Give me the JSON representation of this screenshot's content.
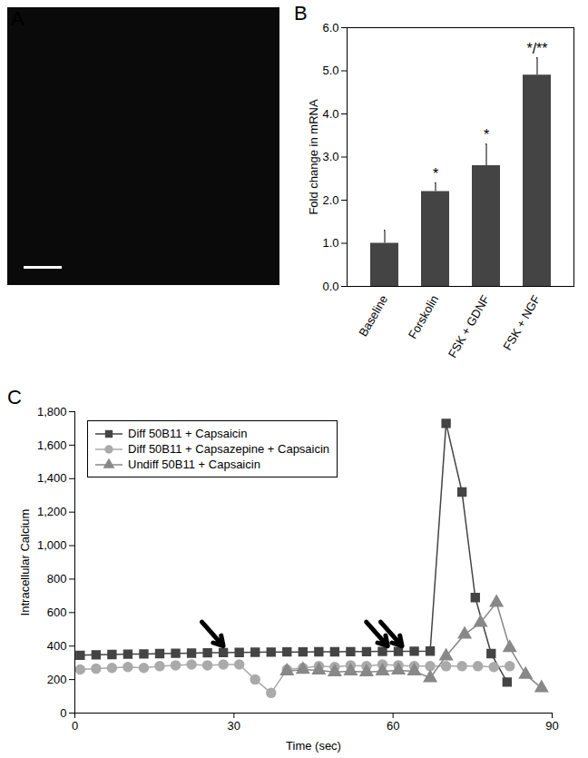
{
  "chart_data": [
    {
      "type": "image",
      "panel": "A"
    },
    {
      "type": "bar",
      "panel": "B",
      "categories": [
        "Baseline",
        "Forskolin",
        "FSK + GDNF",
        "FSK + NGF"
      ],
      "values": [
        1,
        2.2,
        2.8,
        4.9
      ],
      "errors": [
        0.3,
        0.2,
        0.5,
        0.4
      ],
      "annotations": [
        null,
        "*",
        "*",
        "*/**"
      ],
      "color": "#444444",
      "y_label": "Fold change in mRNA",
      "ylim": [
        0,
        6
      ],
      "yticks": [
        0,
        1,
        2,
        3,
        4,
        5,
        6
      ]
    },
    {
      "type": "line",
      "panel": "C",
      "x_label": "Time (sec)",
      "y_label": "Intracellular Calcium",
      "xlim": [
        0,
        90
      ],
      "xticks": [
        0,
        30,
        60,
        90
      ],
      "ylim": [
        0,
        1800
      ],
      "yticks": [
        0,
        200,
        400,
        600,
        800,
        1000,
        1200,
        1400,
        1600,
        1800
      ],
      "legend": "top-left",
      "arrows": [
        {
          "x": 28,
          "y": 400,
          "count": 1
        },
        {
          "x": 59,
          "y": 400,
          "count": 2
        }
      ],
      "series": [
        {
          "name": "Diff 50B11 + Capsaicin",
          "color": "#444444",
          "marker": "square",
          "x": [
            1,
            4,
            7,
            10,
            13,
            16,
            19,
            22,
            25,
            28,
            31,
            34,
            37,
            40,
            43,
            46,
            49,
            52,
            55,
            58,
            61,
            64,
            67,
            70,
            73,
            75.5,
            78.5,
            81.5
          ],
          "values": [
            345,
            348,
            350,
            352,
            353,
            355,
            357,
            358,
            360,
            361,
            362,
            363,
            364,
            365,
            365,
            366,
            366,
            367,
            367,
            368,
            368,
            369,
            370,
            1730,
            1320,
            690,
            355,
            185
          ]
        },
        {
          "name": "Diff 50B11 + Capsazepine + Capsaicin",
          "color": "#aaaaaa",
          "marker": "circle",
          "x": [
            1,
            4,
            7,
            10,
            13,
            16,
            19,
            22,
            25,
            28,
            31,
            34,
            37,
            40,
            43,
            46,
            49,
            52,
            55,
            58,
            61,
            64,
            67,
            70,
            73,
            76,
            79,
            82
          ],
          "values": [
            260,
            265,
            270,
            275,
            270,
            280,
            285,
            290,
            285,
            290,
            290,
            200,
            120,
            260,
            270,
            280,
            275,
            285,
            280,
            290,
            285,
            280,
            280,
            280,
            280,
            280,
            275,
            280
          ]
        },
        {
          "name": "Undiff 50B11 + Capsaicin",
          "color": "#888888",
          "marker": "triangle",
          "x": [
            40,
            43,
            46,
            49,
            52,
            55,
            58,
            61,
            64,
            67,
            70,
            73.5,
            76.5,
            79.5,
            82,
            85,
            88
          ],
          "values": [
            250,
            260,
            255,
            245,
            250,
            245,
            250,
            255,
            250,
            210,
            340,
            470,
            540,
            660,
            390,
            230,
            150
          ]
        }
      ]
    }
  ]
}
